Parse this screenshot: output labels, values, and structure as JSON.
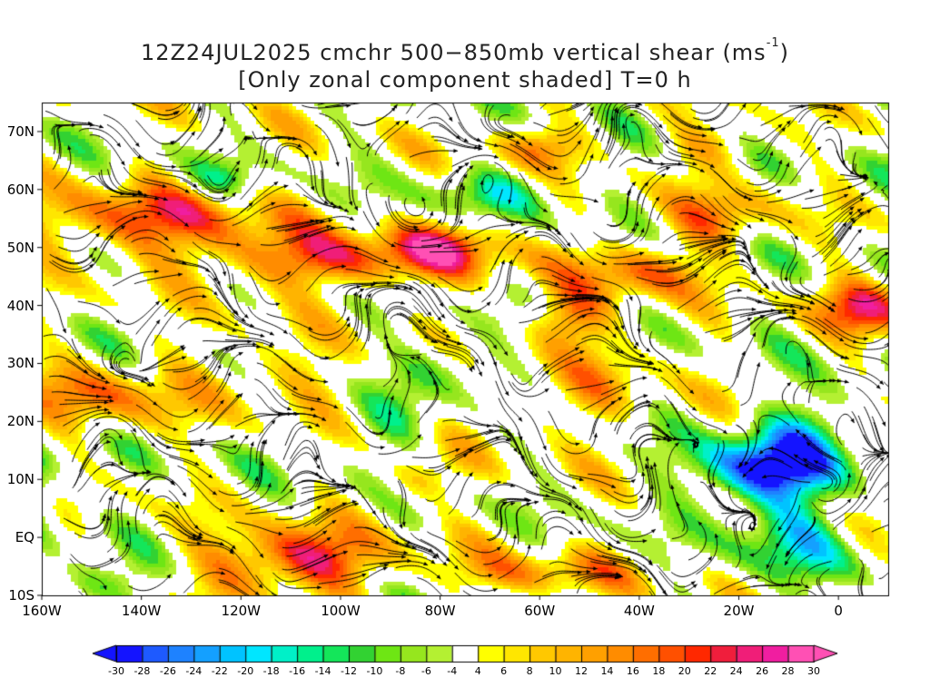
{
  "title": {
    "line1": "12Z24JUL2025 cmchr 500−850mb vertical shear (ms",
    "line1_sup": "-1",
    "line1_end": ")",
    "line2": "[Only zonal component shaded] T=0 h"
  },
  "map": {
    "lat_labels": [
      "70N",
      "60N",
      "50N",
      "40N",
      "30N",
      "20N",
      "10N",
      "EQ",
      "10S"
    ],
    "lat_values": [
      70,
      60,
      50,
      40,
      30,
      20,
      10,
      0,
      -10
    ],
    "lon_labels": [
      "160W",
      "140W",
      "120W",
      "100W",
      "80W",
      "60W",
      "40W",
      "20W",
      "0"
    ],
    "lon_values": [
      -160,
      -140,
      -120,
      -100,
      -80,
      -60,
      -40,
      -20,
      0
    ],
    "lon_range": [
      -160,
      10
    ],
    "lat_range": [
      -10,
      75
    ]
  },
  "colorbar": {
    "labels": [
      "-30",
      "-28",
      "-26",
      "-24",
      "-22",
      "-20",
      "-18",
      "-16",
      "-14",
      "-12",
      "-10",
      "-8",
      "-6",
      "-4",
      "4",
      "6",
      "8",
      "10",
      "12",
      "14",
      "16",
      "18",
      "20",
      "22",
      "24",
      "26",
      "28",
      "30"
    ],
    "colors": [
      "#1414ff",
      "#1e5aff",
      "#1e82ff",
      "#14a0ff",
      "#00c3ff",
      "#00e6ff",
      "#00f0c8",
      "#00f08c",
      "#14e65a",
      "#32d232",
      "#6ee614",
      "#96e61e",
      "#b4f032",
      "#ffffff",
      "#ffff00",
      "#ffe600",
      "#ffc800",
      "#ffb400",
      "#ffa000",
      "#ff8c00",
      "#ff6e00",
      "#ff5000",
      "#ff2800",
      "#f01e3c",
      "#f01e78",
      "#f01ea0",
      "#ff50b4"
    ],
    "under_color": "#1414ff",
    "over_color": "#ff50b4"
  }
}
